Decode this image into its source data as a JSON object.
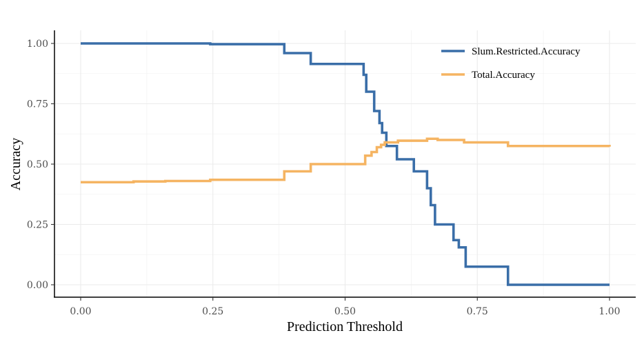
{
  "chart_data": {
    "type": "line",
    "title": "",
    "xlabel": "Prediction Threshold",
    "ylabel": "Accuracy",
    "xlim": [
      0,
      1
    ],
    "ylim": [
      0,
      1
    ],
    "x_ticks": [
      0,
      0.25,
      0.5,
      0.75,
      1
    ],
    "x_tick_labels": [
      "0.00",
      "0.25",
      "0.50",
      "0.75",
      "1.00"
    ],
    "y_ticks": [
      0,
      0.25,
      0.5,
      0.75,
      1
    ],
    "y_tick_labels": [
      "0.00",
      "0.25",
      "0.50",
      "0.75",
      "1.00"
    ],
    "grid": true,
    "legend_position": "top-right",
    "series": [
      {
        "name": "Slum.Restricted.Accuracy",
        "color": "#3a6ea8",
        "step": true,
        "x": [
          0,
          0.245,
          0.385,
          0.435,
          0.535,
          0.54,
          0.555,
          0.565,
          0.57,
          0.578,
          0.598,
          0.63,
          0.655,
          0.662,
          0.67,
          0.69,
          0.705,
          0.715,
          0.728,
          0.808,
          1.0
        ],
        "y": [
          1.0,
          0.997,
          0.96,
          0.915,
          0.87,
          0.8,
          0.72,
          0.67,
          0.63,
          0.575,
          0.52,
          0.47,
          0.4,
          0.33,
          0.25,
          0.25,
          0.185,
          0.155,
          0.075,
          0.0,
          0.0
        ]
      },
      {
        "name": "Total.Accuracy",
        "color": "#f5b462",
        "step": true,
        "x": [
          0,
          0.1,
          0.16,
          0.245,
          0.385,
          0.435,
          0.538,
          0.55,
          0.56,
          0.568,
          0.575,
          0.6,
          0.655,
          0.675,
          0.725,
          0.808,
          1.0
        ],
        "y": [
          0.425,
          0.428,
          0.43,
          0.435,
          0.47,
          0.5,
          0.535,
          0.55,
          0.57,
          0.58,
          0.59,
          0.597,
          0.605,
          0.6,
          0.59,
          0.575,
          0.572
        ]
      }
    ]
  }
}
